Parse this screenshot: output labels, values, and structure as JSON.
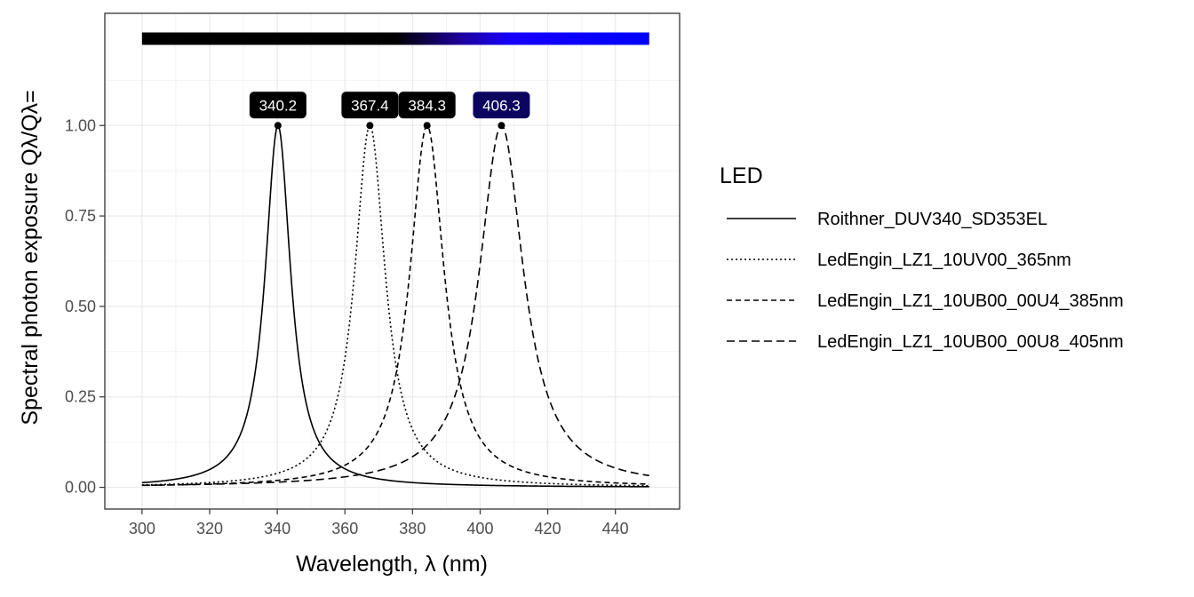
{
  "chart_data": {
    "type": "line",
    "xlabel": "Wavelength, λ (nm)",
    "ylabel": "Spectral photon exposure Qλ/Qλ=",
    "xlim": [
      289,
      459
    ],
    "ylim": [
      -0.06,
      1.31
    ],
    "x_ticks": [
      300,
      320,
      340,
      360,
      380,
      400,
      420,
      440
    ],
    "x_tick_labels": [
      "300",
      "320",
      "340",
      "360",
      "380",
      "400",
      "420",
      "440"
    ],
    "y_ticks": [
      0,
      0.25,
      0.5,
      0.75,
      1.0
    ],
    "y_tick_labels": [
      "0.00",
      "0.25",
      "0.50",
      "0.75",
      "1.00"
    ],
    "grid": true,
    "legend_title": "LED",
    "legend_position": "right",
    "color_bar": {
      "x_range": [
        300,
        450
      ],
      "y": 1.24
    },
    "series": [
      {
        "name": "Roithner_DUV340_SD353EL",
        "dash": "solid",
        "peak": 340.2,
        "hwhm": 4.6,
        "range": [
          300,
          450
        ]
      },
      {
        "name": "LedEngin_LZ1_10UV00_365nm",
        "dash": "dotted",
        "peak": 367.4,
        "hwhm": 5.5,
        "range": [
          300,
          450
        ]
      },
      {
        "name": "LedEngin_LZ1_10UB00_00U4_385nm",
        "dash": "dashed",
        "peak": 384.3,
        "hwhm": 6.2,
        "range": [
          300,
          450
        ]
      },
      {
        "name": "LedEngin_LZ1_10UB00_00U8_405nm",
        "dash": "longdash",
        "peak": 406.3,
        "hwhm": 8.0,
        "range": [
          300,
          450
        ]
      }
    ],
    "peak_labels": [
      {
        "x": 340.2,
        "y": 1.0,
        "label": "340.2",
        "fill": "#000000"
      },
      {
        "x": 367.4,
        "y": 1.0,
        "label": "367.4",
        "fill": "#000000"
      },
      {
        "x": 384.3,
        "y": 1.0,
        "label": "384.3",
        "fill": "#000000"
      },
      {
        "x": 406.3,
        "y": 1.0,
        "label": "406.3",
        "fill": "#0b0560"
      }
    ]
  }
}
